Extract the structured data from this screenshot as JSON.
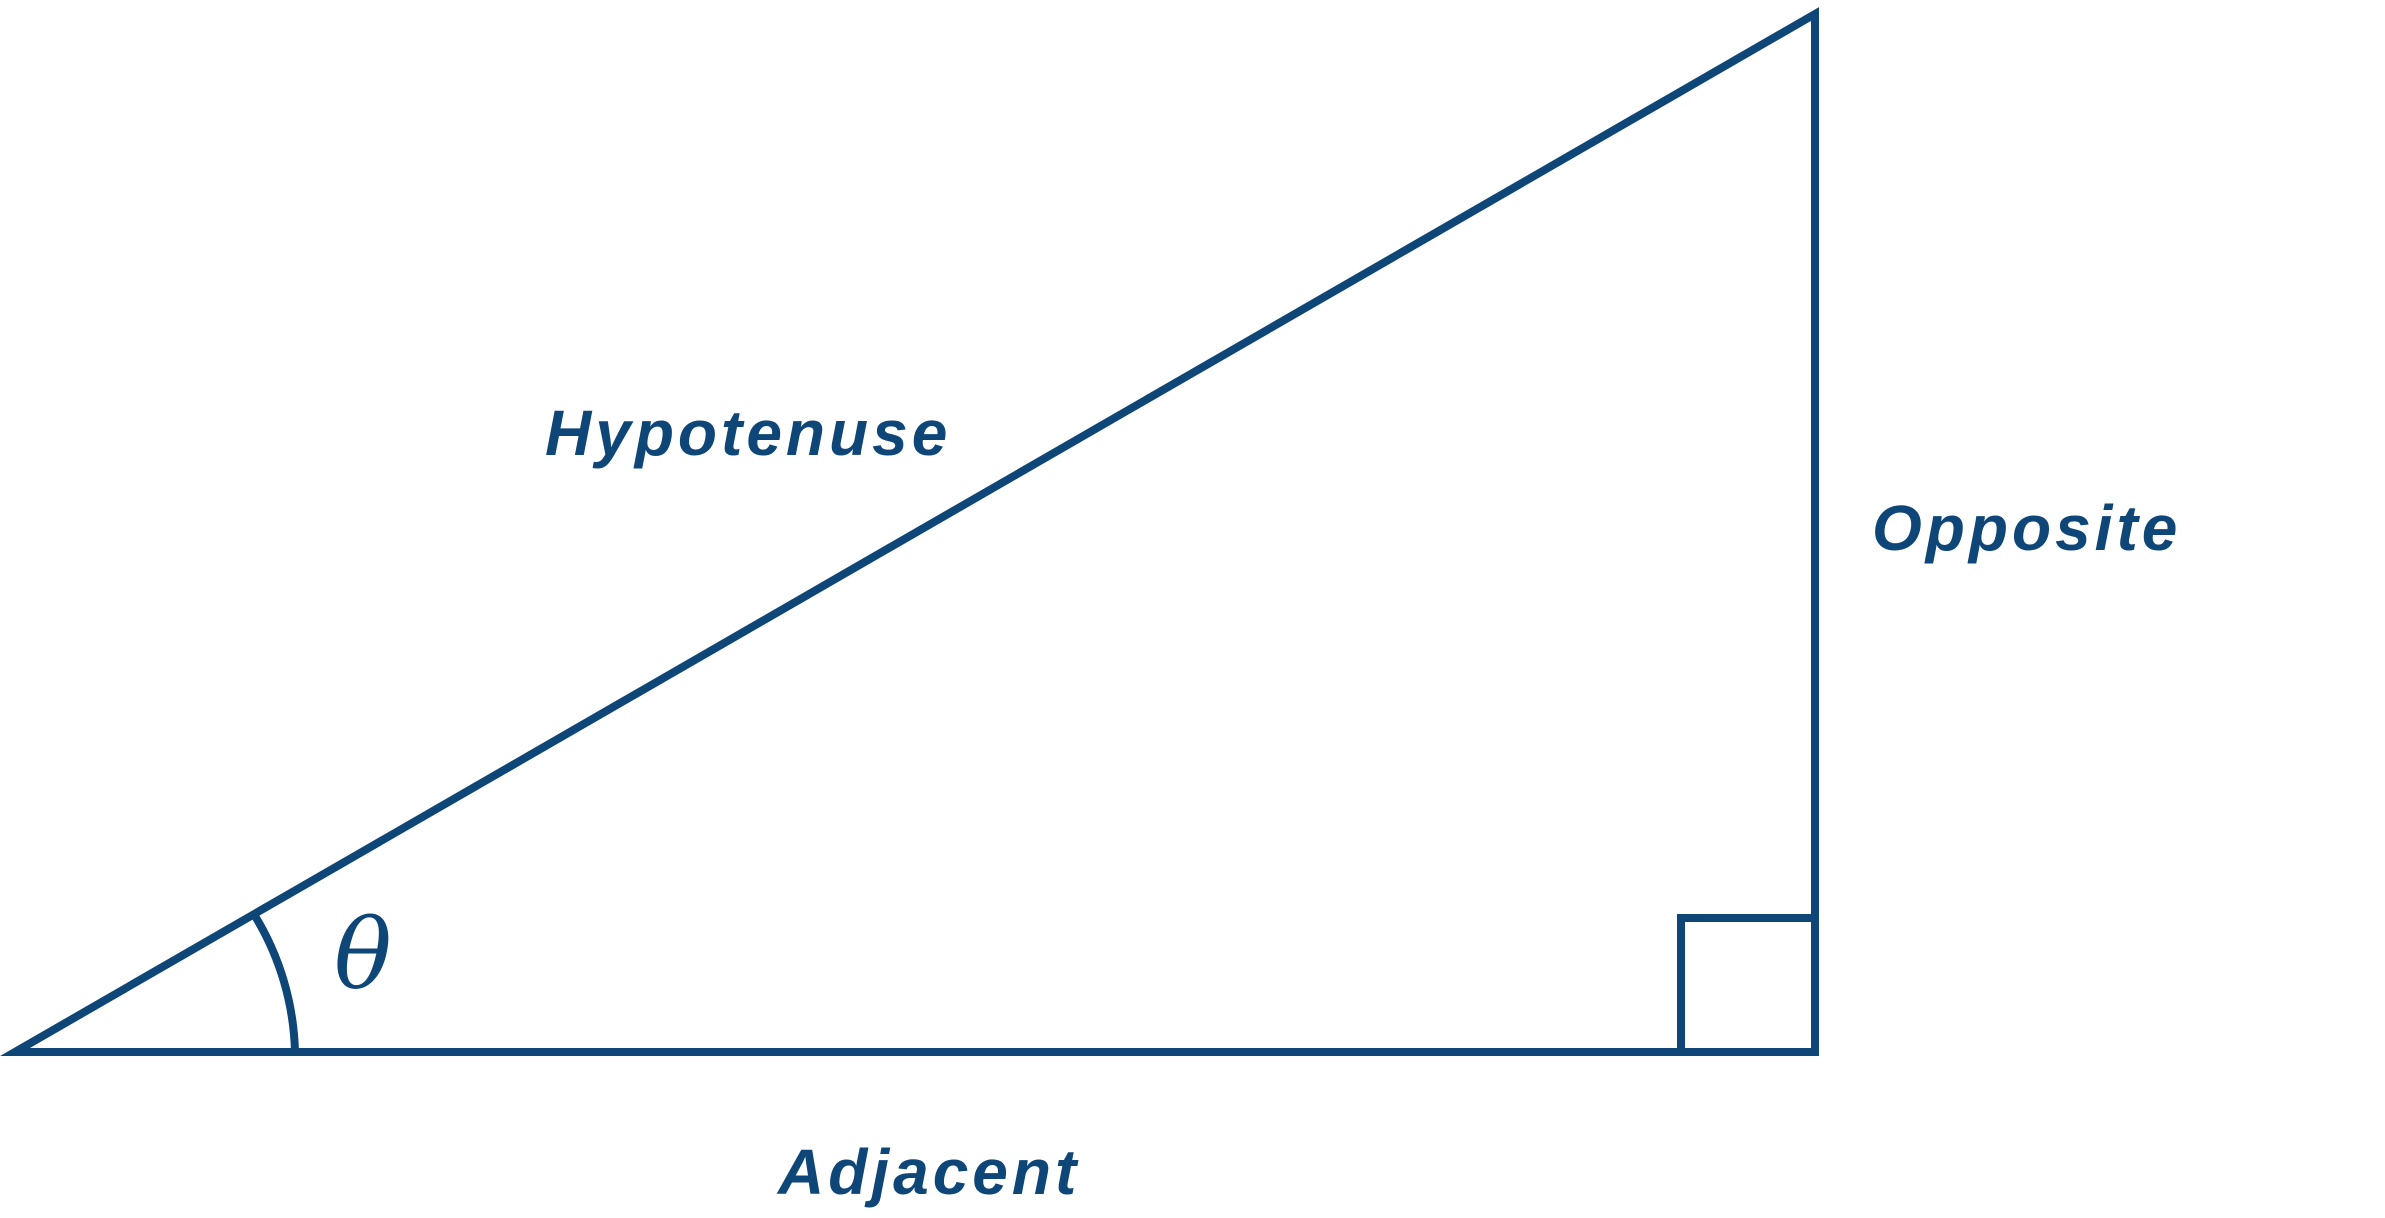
{
  "diagram": {
    "type": "right-triangle",
    "color": "#0e4677",
    "labels": {
      "hypotenuse": "Hypotenuse",
      "opposite": "Opposite",
      "adjacent": "Adjacent",
      "angle": "θ"
    },
    "right_angle_marker": true
  }
}
